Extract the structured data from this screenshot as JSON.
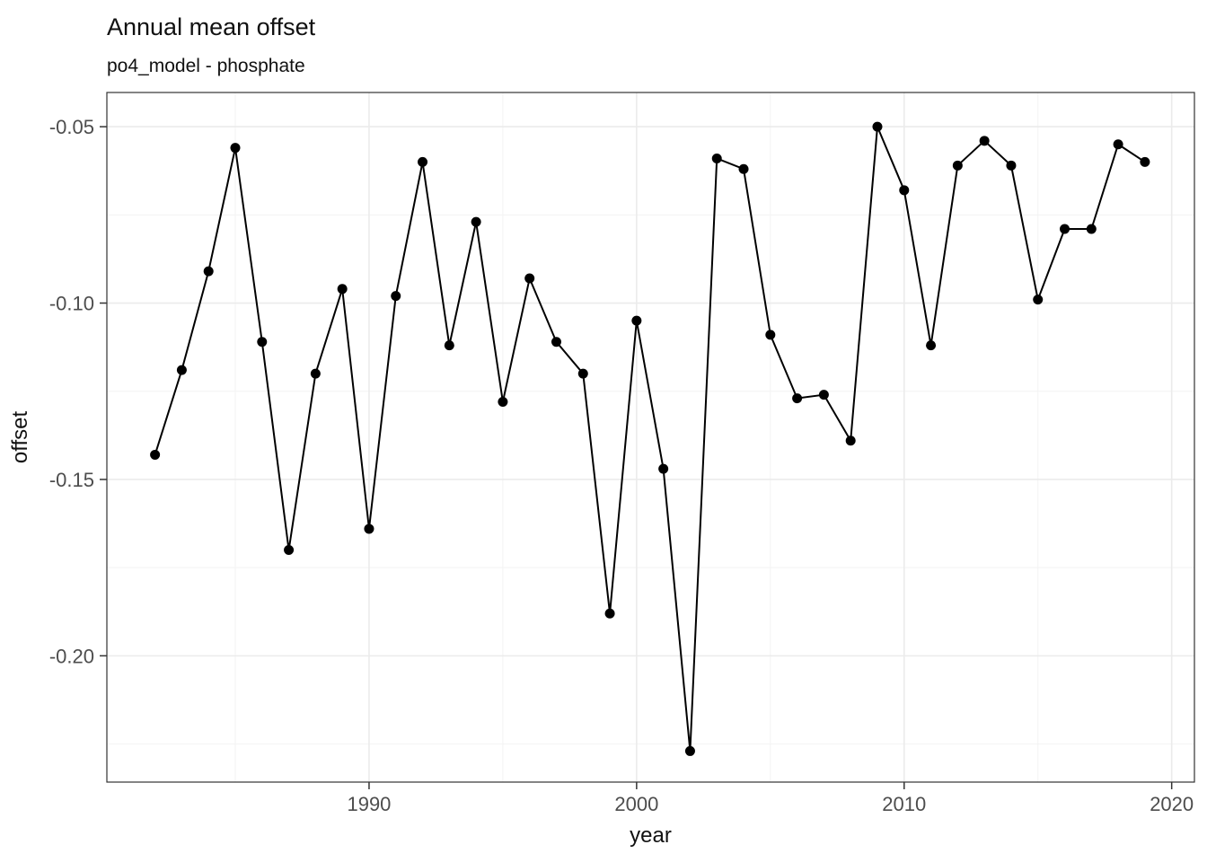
{
  "chart_data": {
    "type": "line",
    "title": "Annual mean offset",
    "subtitle": "po4_model - phosphate",
    "xlabel": "year",
    "ylabel": "offset",
    "x": [
      1982,
      1983,
      1984,
      1985,
      1986,
      1987,
      1988,
      1989,
      1990,
      1991,
      1992,
      1993,
      1994,
      1995,
      1996,
      1997,
      1998,
      1999,
      2000,
      2001,
      2002,
      2003,
      2004,
      2005,
      2006,
      2007,
      2008,
      2009,
      2010,
      2011,
      2012,
      2013,
      2014,
      2015,
      2016,
      2017,
      2018,
      2019
    ],
    "values": [
      -0.143,
      -0.119,
      -0.091,
      -0.056,
      -0.111,
      -0.17,
      -0.12,
      -0.096,
      -0.164,
      -0.098,
      -0.06,
      -0.112,
      -0.077,
      -0.128,
      -0.093,
      -0.111,
      -0.12,
      -0.188,
      -0.105,
      -0.147,
      -0.227,
      -0.059,
      -0.062,
      -0.109,
      -0.127,
      -0.126,
      -0.139,
      -0.05,
      -0.068,
      -0.112,
      -0.061,
      -0.054,
      -0.061,
      -0.099,
      -0.079,
      -0.079,
      -0.055,
      -0.06
    ],
    "xlim": [
      1980.2,
      2020.85
    ],
    "ylim": [
      -0.2358,
      -0.0403
    ],
    "x_ticks": [
      1990,
      2000,
      2010,
      2020
    ],
    "x_tick_labels": [
      "1990",
      "2000",
      "2010",
      "2020"
    ],
    "x_minor": [
      1985,
      1995,
      2005,
      2015
    ],
    "y_ticks": [
      -0.05,
      -0.1,
      -0.15,
      -0.2
    ],
    "y_tick_labels": [
      "-0.05",
      "-0.10",
      "-0.15",
      "-0.20"
    ],
    "y_minor": [
      -0.075,
      -0.125,
      -0.175,
      -0.225
    ],
    "grid": true,
    "legend": "none",
    "series_color": "#000000",
    "point_color": "#000000",
    "grid_major_color": "#ebebeb",
    "grid_minor_color": "#f3f3f3",
    "panel_border_color": "#333333",
    "tick_mark_color": "#333333",
    "tick_label_color": "#4d4d4d",
    "axis_title_color": "#111111",
    "background": "#ffffff"
  }
}
